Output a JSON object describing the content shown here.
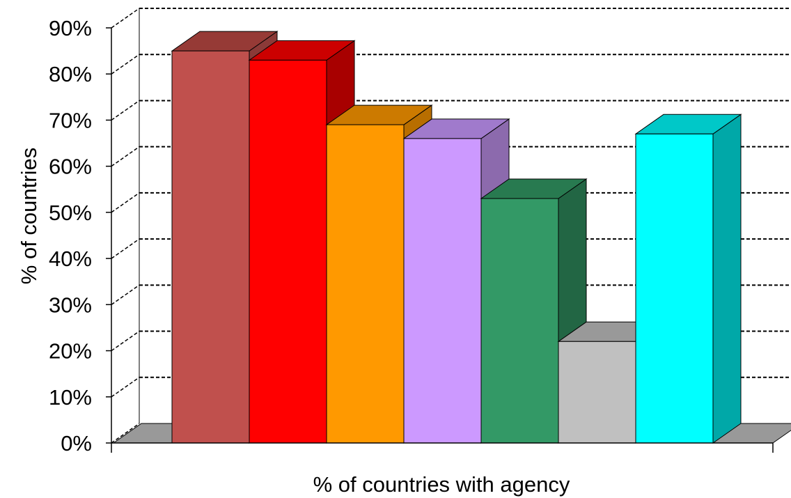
{
  "chart_data": {
    "type": "bar",
    "style": "3d-clustered-columns",
    "title": "",
    "xlabel": "% of countries with agency",
    "ylabel": "% of  countries",
    "ylim": [
      0,
      90
    ],
    "y_ticks": [
      "0%",
      "10%",
      "20%",
      "30%",
      "40%",
      "50%",
      "60%",
      "70%",
      "80%",
      "90%"
    ],
    "grid": true,
    "legend": "none",
    "series": [
      {
        "value": 85,
        "color": "#c0504d",
        "side_color": "#8b3a38",
        "top_color": "#963a36"
      },
      {
        "value": 83,
        "color": "#ff0000",
        "side_color": "#a80000",
        "top_color": "#cc0000"
      },
      {
        "value": 69,
        "color": "#ff9900",
        "side_color": "#b86e00",
        "top_color": "#cc7a00"
      },
      {
        "value": 66,
        "color": "#cc99ff",
        "side_color": "#8c6aad",
        "top_color": "#a07acc"
      },
      {
        "value": 53,
        "color": "#339966",
        "side_color": "#226644",
        "top_color": "#287a50"
      },
      {
        "value": 22,
        "color": "#c0c0c0",
        "side_color": "#8a8a8a",
        "top_color": "#999999"
      },
      {
        "value": 67,
        "color": "#00ffff",
        "side_color": "#00a8a8",
        "top_color": "#00c8c8"
      }
    ],
    "floor_color": "#999999"
  }
}
